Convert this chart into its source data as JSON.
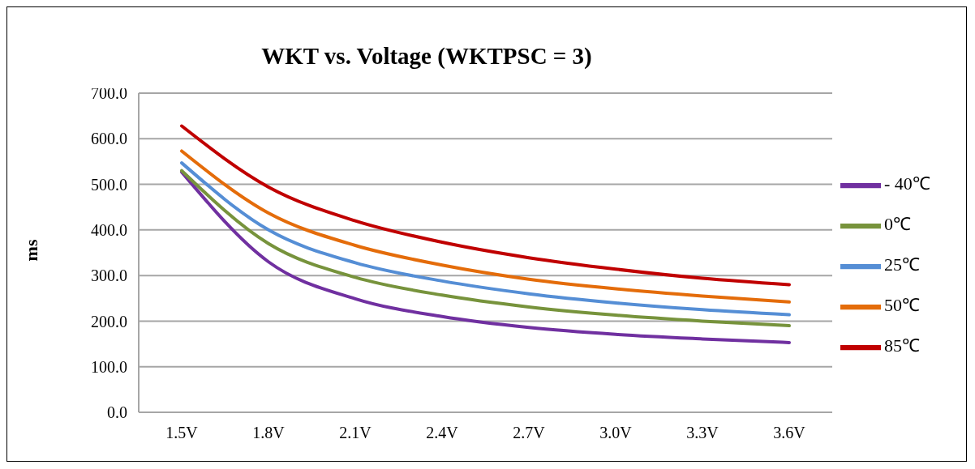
{
  "chart_data": {
    "type": "line",
    "title": "WKT vs. Voltage (WKTPSC = 3)",
    "ylabel": "ms",
    "categories": [
      "1.5V",
      "1.8V",
      "2.1V",
      "2.4V",
      "2.7V",
      "3.0V",
      "3.3V",
      "3.6V"
    ],
    "series": [
      {
        "name": "- 40℃",
        "color": "#7030a0",
        "values": [
          527,
          330,
          249,
          210,
          186,
          171,
          161,
          153
        ]
      },
      {
        "name": "0℃",
        "color": "#77933c",
        "values": [
          530,
          370,
          296,
          257,
          231,
          213,
          200,
          190
        ]
      },
      {
        "name": "25℃",
        "color": "#558ed5",
        "values": [
          547,
          400,
          328,
          288,
          260,
          240,
          225,
          214
        ]
      },
      {
        "name": "50℃",
        "color": "#e46c0a",
        "values": [
          573,
          437,
          366,
          323,
          292,
          271,
          255,
          242
        ]
      },
      {
        "name": "85℃",
        "color": "#c00000",
        "values": [
          628,
          494,
          420,
          373,
          339,
          314,
          294,
          280
        ]
      }
    ],
    "ylim": [
      0,
      700
    ],
    "yticks": [
      {
        "value": 0,
        "label": "0.0"
      },
      {
        "value": 100,
        "label": "100.0"
      },
      {
        "value": 200,
        "label": "200.0"
      },
      {
        "value": 300,
        "label": "300.0"
      },
      {
        "value": 400,
        "label": "400.0"
      },
      {
        "value": 500,
        "label": "500.0"
      },
      {
        "value": 600,
        "label": "600.0"
      },
      {
        "value": 700,
        "label": "700.0"
      }
    ],
    "grid": "y",
    "legend": "right",
    "marker": "none",
    "line_style": "solid"
  }
}
